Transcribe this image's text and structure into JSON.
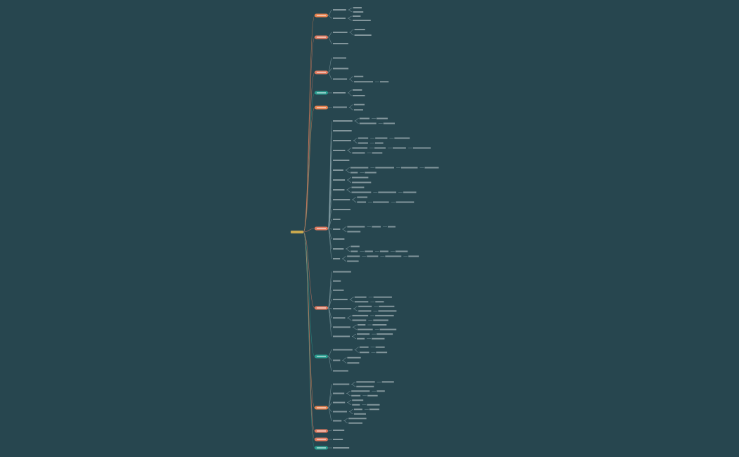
{
  "branches": [
    {
      "color": "#e8834f"
    },
    {
      "color": "#e07a5f"
    },
    {
      "color": "#e07a5f"
    },
    {
      "color": "#2a9d8f"
    },
    {
      "color": "#e8834f"
    },
    {
      "color": "#e07a5f"
    },
    {
      "color": "#e07a5f"
    },
    {
      "color": "#2a9d8f"
    },
    {
      "color": "#e8834f"
    },
    {
      "color": "#e07a5f"
    },
    {
      "color": "#e07a5f"
    },
    {
      "color": "#2a9d8f"
    }
  ]
}
